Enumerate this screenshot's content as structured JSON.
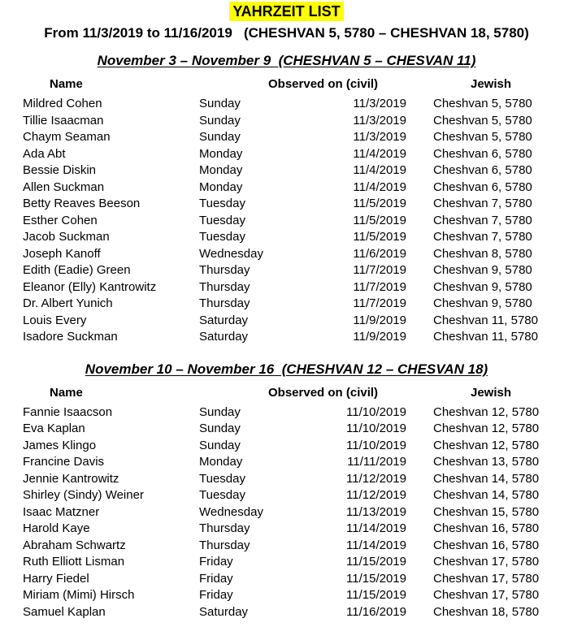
{
  "page": {
    "title": "YAHRZEIT LIST",
    "subtitle": "From 11/3/2019 to 11/16/2019   (CHESHVAN 5, 5780 – CHESHVAN 18, 5780)",
    "highlight_color": "#ffff00",
    "text_color": "#000000",
    "background_color": "#ffffff"
  },
  "columns": {
    "name": "Name",
    "observed": "Observed on (civil)",
    "jewish": "Jewish"
  },
  "sections": [
    {
      "heading": "November 3 – November 9  (CHESHVAN 5 – CHESVAN 11)",
      "rows": [
        {
          "name": "Mildred Cohen",
          "day": "Sunday",
          "civil": "11/3/2019",
          "jewish": "Cheshvan 5, 5780"
        },
        {
          "name": "Tillie Isaacman",
          "day": "Sunday",
          "civil": "11/3/2019",
          "jewish": "Cheshvan 5, 5780"
        },
        {
          "name": "Chaym Seaman",
          "day": "Sunday",
          "civil": "11/3/2019",
          "jewish": "Cheshvan 5, 5780"
        },
        {
          "name": "Ada Abt",
          "day": "Monday",
          "civil": "11/4/2019",
          "jewish": "Cheshvan 6, 5780"
        },
        {
          "name": "Bessie Diskin",
          "day": "Monday",
          "civil": "11/4/2019",
          "jewish": "Cheshvan 6, 5780"
        },
        {
          "name": "Allen Suckman",
          "day": "Monday",
          "civil": "11/4/2019",
          "jewish": "Cheshvan 6, 5780"
        },
        {
          "name": "Betty Reaves Beeson",
          "day": "Tuesday",
          "civil": "11/5/2019",
          "jewish": "Cheshvan 7, 5780"
        },
        {
          "name": "Esther Cohen",
          "day": "Tuesday",
          "civil": "11/5/2019",
          "jewish": "Cheshvan 7, 5780"
        },
        {
          "name": "Jacob Suckman",
          "day": "Tuesday",
          "civil": "11/5/2019",
          "jewish": "Cheshvan 7, 5780"
        },
        {
          "name": "Joseph Kanoff",
          "day": "Wednesday",
          "civil": "11/6/2019",
          "jewish": "Cheshvan 8, 5780"
        },
        {
          "name": "Edith (Eadie) Green",
          "day": "Thursday",
          "civil": "11/7/2019",
          "jewish": "Cheshvan 9, 5780"
        },
        {
          "name": "Eleanor (Elly) Kantrowitz",
          "day": "Thursday",
          "civil": "11/7/2019",
          "jewish": "Cheshvan 9, 5780"
        },
        {
          "name": "Dr. Albert Yunich",
          "day": "Thursday",
          "civil": "11/7/2019",
          "jewish": "Cheshvan 9, 5780"
        },
        {
          "name": "Louis Every",
          "day": "Saturday",
          "civil": "11/9/2019",
          "jewish": "Cheshvan 11, 5780"
        },
        {
          "name": "Isadore Suckman",
          "day": "Saturday",
          "civil": "11/9/2019",
          "jewish": "Cheshvan 11, 5780"
        }
      ]
    },
    {
      "heading": "November 10 – November 16  (CHESHVAN 12 – CHESVAN 18)",
      "rows": [
        {
          "name": "Fannie Isaacson",
          "day": "Sunday",
          "civil": "11/10/2019",
          "jewish": "Cheshvan 12, 5780"
        },
        {
          "name": "Eva Kaplan",
          "day": "Sunday",
          "civil": "11/10/2019",
          "jewish": "Cheshvan 12, 5780"
        },
        {
          "name": "James Klingo",
          "day": "Sunday",
          "civil": "11/10/2019",
          "jewish": "Cheshvan 12, 5780"
        },
        {
          "name": "Francine Davis",
          "day": "Monday",
          "civil": "11/11/2019",
          "jewish": "Cheshvan 13, 5780"
        },
        {
          "name": "Jennie Kantrowitz",
          "day": "Tuesday",
          "civil": "11/12/2019",
          "jewish": "Cheshvan 14, 5780"
        },
        {
          "name": "Shirley (Sindy) Weiner",
          "day": "Tuesday",
          "civil": "11/12/2019",
          "jewish": "Cheshvan 14, 5780"
        },
        {
          "name": "Isaac Matzner",
          "day": "Wednesday",
          "civil": "11/13/2019",
          "jewish": "Cheshvan 15, 5780"
        },
        {
          "name": "Harold Kaye",
          "day": "Thursday",
          "civil": "11/14/2019",
          "jewish": "Cheshvan 16, 5780"
        },
        {
          "name": "Abraham Schwartz",
          "day": "Thursday",
          "civil": "11/14/2019",
          "jewish": "Cheshvan 16, 5780"
        },
        {
          "name": "Ruth Elliott Lisman",
          "day": "Friday",
          "civil": "11/15/2019",
          "jewish": "Cheshvan 17, 5780"
        },
        {
          "name": "Harry Fiedel",
          "day": "Friday",
          "civil": "11/15/2019",
          "jewish": "Cheshvan 17, 5780"
        },
        {
          "name": "Miriam (Mimi) Hirsch",
          "day": "Friday",
          "civil": "11/15/2019",
          "jewish": "Cheshvan 17, 5780"
        },
        {
          "name": "Samuel Kaplan",
          "day": "Saturday",
          "civil": "11/16/2019",
          "jewish": "Cheshvan 18, 5780"
        }
      ]
    }
  ]
}
